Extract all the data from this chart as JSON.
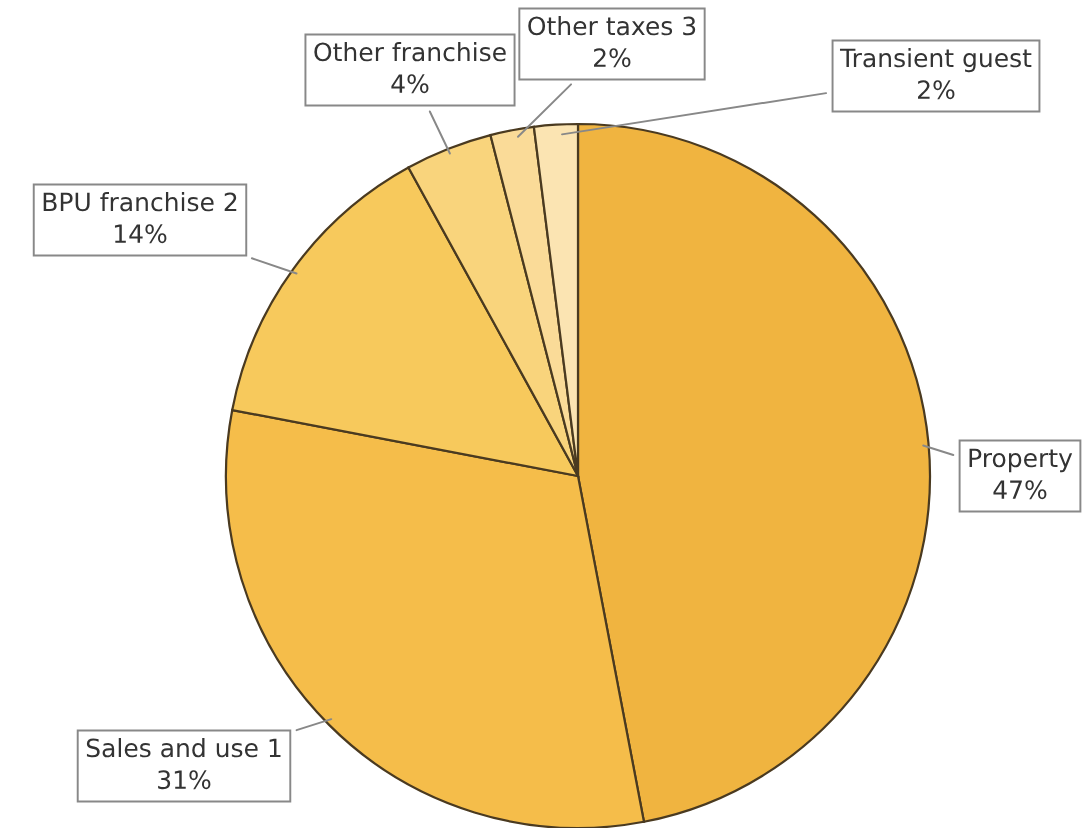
{
  "chart_data": {
    "type": "pie",
    "categories": [
      "Property",
      "Sales and use 1",
      "BPU franchise 2",
      "Other franchise",
      "Other taxes 3",
      "Transient guest"
    ],
    "values": [
      47,
      31,
      14,
      4,
      2,
      2
    ],
    "colors": [
      "#f0b440",
      "#f5bd4a",
      "#f7c95c",
      "#f9d47c",
      "#fadb98",
      "#fbe4b2"
    ],
    "value_labels": [
      "47%",
      "31%",
      "14%",
      "4%",
      "2%",
      "2%"
    ],
    "legend": false
  }
}
